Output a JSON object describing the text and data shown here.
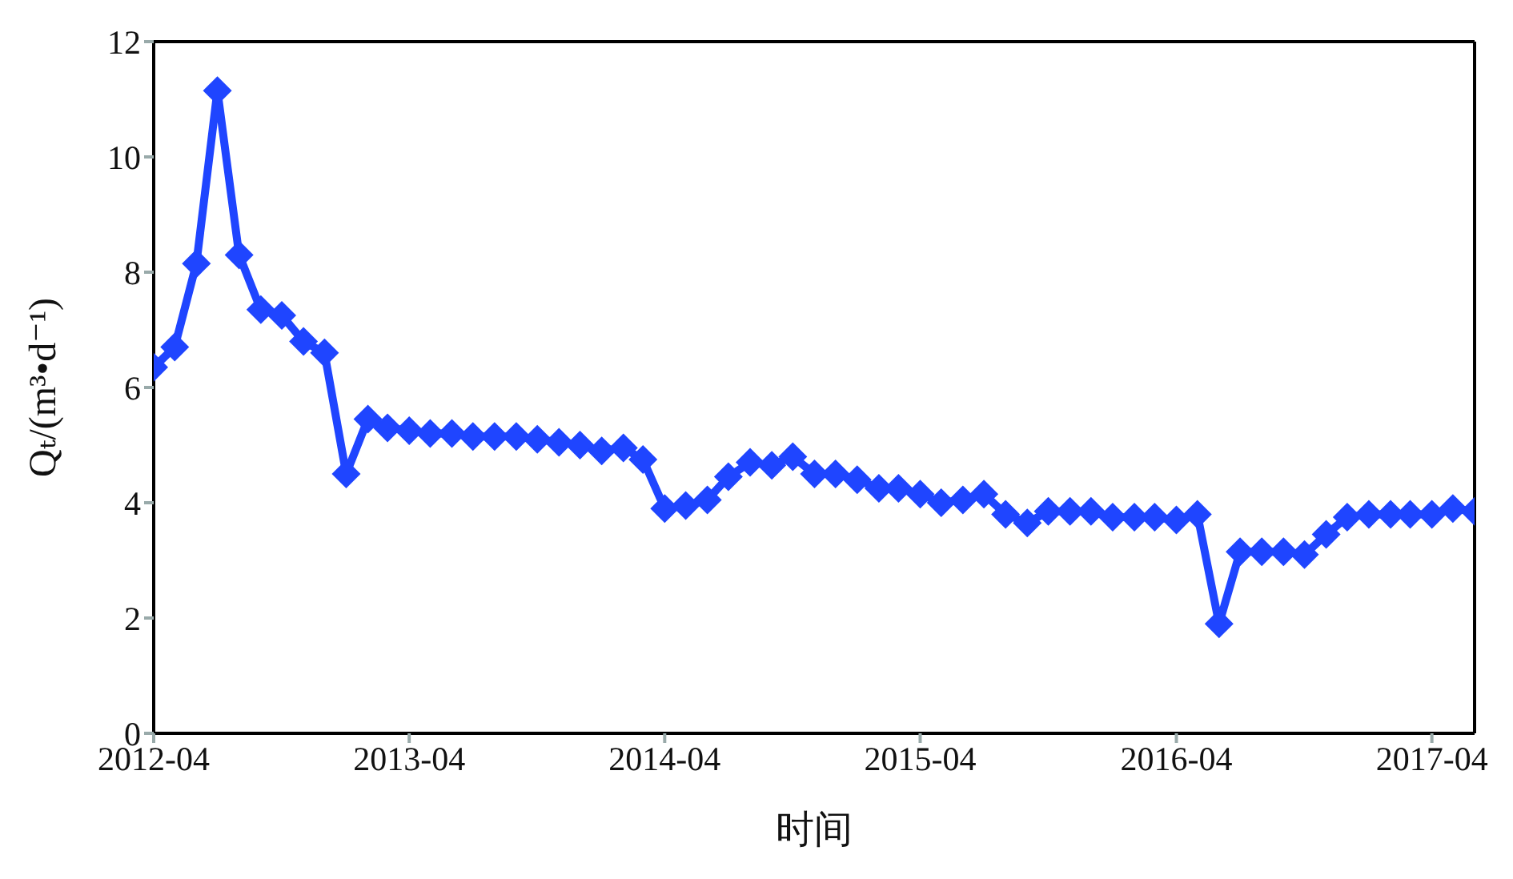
{
  "chart_data": {
    "type": "line",
    "xlabel": "时间",
    "ylabel": "Qₜ/(m³•d⁻¹)",
    "x": [
      "2012-04",
      "2012-05",
      "2012-06",
      "2012-07",
      "2012-08",
      "2012-09",
      "2012-10",
      "2012-11",
      "2012-12",
      "2013-01",
      "2013-02",
      "2013-03",
      "2013-04",
      "2013-05",
      "2013-06",
      "2013-07",
      "2013-08",
      "2013-09",
      "2013-10",
      "2013-11",
      "2013-12",
      "2014-01",
      "2014-02",
      "2014-03",
      "2014-04",
      "2014-05",
      "2014-06",
      "2014-07",
      "2014-08",
      "2014-09",
      "2014-10",
      "2014-11",
      "2014-12",
      "2015-01",
      "2015-02",
      "2015-03",
      "2015-04",
      "2015-05",
      "2015-06",
      "2015-07",
      "2015-08",
      "2015-09",
      "2015-10",
      "2015-11",
      "2015-12",
      "2016-01",
      "2016-02",
      "2016-03",
      "2016-04",
      "2016-05",
      "2016-06",
      "2016-07",
      "2016-08",
      "2016-09",
      "2016-10",
      "2016-11",
      "2016-12",
      "2017-01",
      "2017-02",
      "2017-03",
      "2017-04",
      "2017-05",
      "2017-06"
    ],
    "series": [
      {
        "color": "#1f45ff",
        "values": [
          6.35,
          6.7,
          8.15,
          11.15,
          8.3,
          7.35,
          7.25,
          6.8,
          6.6,
          4.5,
          5.45,
          5.3,
          5.25,
          5.2,
          5.2,
          5.15,
          5.15,
          5.15,
          5.1,
          5.05,
          5.0,
          4.9,
          4.95,
          4.75,
          3.9,
          3.95,
          4.05,
          4.45,
          4.7,
          4.65,
          4.8,
          4.5,
          4.5,
          4.4,
          4.25,
          4.25,
          4.15,
          4.0,
          4.05,
          4.15,
          3.8,
          3.65,
          3.85,
          3.85,
          3.85,
          3.75,
          3.75,
          3.75,
          3.7,
          3.8,
          1.9,
          3.15,
          3.15,
          3.15,
          3.1,
          3.45,
          3.75,
          3.8,
          3.8,
          3.8,
          3.8,
          3.9,
          3.85
        ]
      }
    ],
    "xlim": [
      "2012-04",
      "2017-06"
    ],
    "xticks": [
      "2012-04",
      "2013-04",
      "2014-04",
      "2015-04",
      "2016-04",
      "2017-04"
    ],
    "ylim": [
      0,
      12
    ],
    "yticks": [
      0,
      2,
      4,
      6,
      8,
      10,
      12
    ],
    "marker": "diamond",
    "line_style": "solid",
    "legend": false,
    "grid": false
  }
}
